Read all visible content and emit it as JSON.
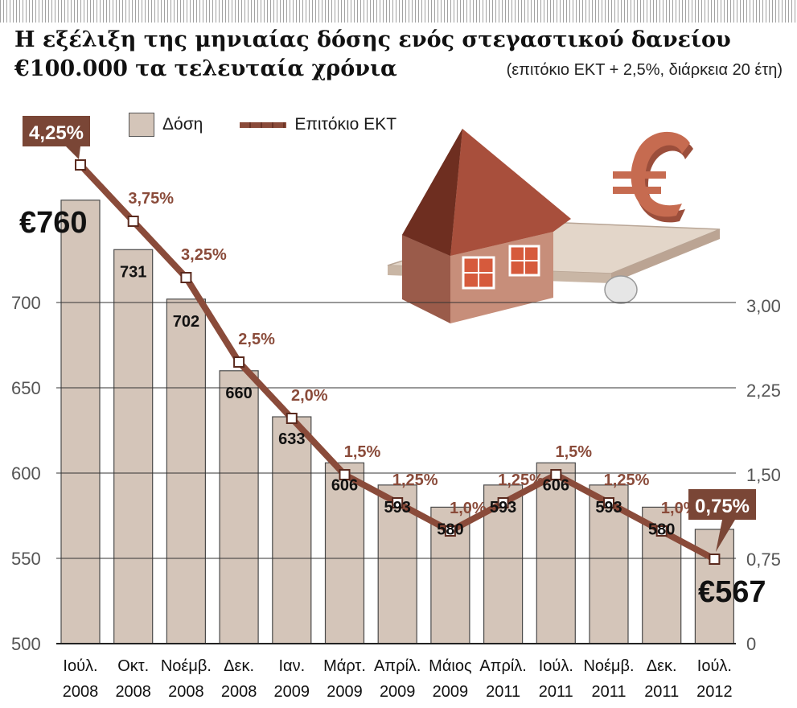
{
  "title_line1": "Η εξέλιξη της μηνιαίας δόσης ενός στεγαστικού δανείου",
  "title_line2": "€100.000 τα τελευταία χρόνια",
  "subtitle": "(επιτόκιο ΕΚΤ + 2,5%, διάρκεια 20 έτη)",
  "legend": {
    "bar": "Δόση",
    "line": "Επιτόκιο ΕΚΤ"
  },
  "colors": {
    "bar": "#d4c5b9",
    "line": "#8a4b3a",
    "callout": "#7a4636",
    "grid": "#333333"
  },
  "chart_data": {
    "type": "bar+line",
    "categories": [
      [
        "Ιούλ.",
        "2008"
      ],
      [
        "Οκτ.",
        "2008"
      ],
      [
        "Νοέμβ.",
        "2008"
      ],
      [
        "Δεκ.",
        "2008"
      ],
      [
        "Ιαν.",
        "2009"
      ],
      [
        "Μάρτ.",
        "2009"
      ],
      [
        "Απρίλ.",
        "2009"
      ],
      [
        "Μάιος",
        "2009"
      ],
      [
        "Απρίλ.",
        "2011"
      ],
      [
        "Ιούλ.",
        "2011"
      ],
      [
        "Νοέμβ.",
        "2011"
      ],
      [
        "Δεκ.",
        "2011"
      ],
      [
        "Ιούλ.",
        "2012"
      ]
    ],
    "series": [
      {
        "name": "Δόση",
        "axis": "left",
        "values": [
          760,
          731,
          702,
          660,
          633,
          606,
          593,
          580,
          593,
          606,
          593,
          580,
          567
        ],
        "labels": [
          "€760",
          "731",
          "702",
          "660",
          "633",
          "606",
          "593",
          "580",
          "593",
          "606",
          "593",
          "580",
          "€567"
        ]
      },
      {
        "name": "Επιτόκιο ΕΚΤ",
        "axis": "right",
        "values": [
          4.25,
          3.75,
          3.25,
          2.5,
          2.0,
          1.5,
          1.25,
          1.0,
          1.25,
          1.5,
          1.25,
          1.0,
          0.75
        ],
        "labels": [
          "4,25%",
          "3,75%",
          "3,25%",
          "2,5%",
          "2,0%",
          "1,5%",
          "1,25%",
          "1,0%",
          "1,25%",
          "1,5%",
          "1,25%",
          "1,0%",
          "0,75%"
        ]
      }
    ],
    "y_left": {
      "ticks": [
        "500",
        "550",
        "600",
        "650",
        "700"
      ],
      "tick_values": [
        500,
        550,
        600,
        650,
        700
      ],
      "ylim": [
        500,
        800
      ]
    },
    "y_right": {
      "ticks": [
        "0",
        "0,75",
        "1,50",
        "2,25",
        "3,00"
      ],
      "tick_values": [
        0,
        0.75,
        1.5,
        2.25,
        3.0
      ],
      "ylim": [
        0,
        4.5
      ]
    },
    "legend_position": "top-left",
    "grid": true
  }
}
